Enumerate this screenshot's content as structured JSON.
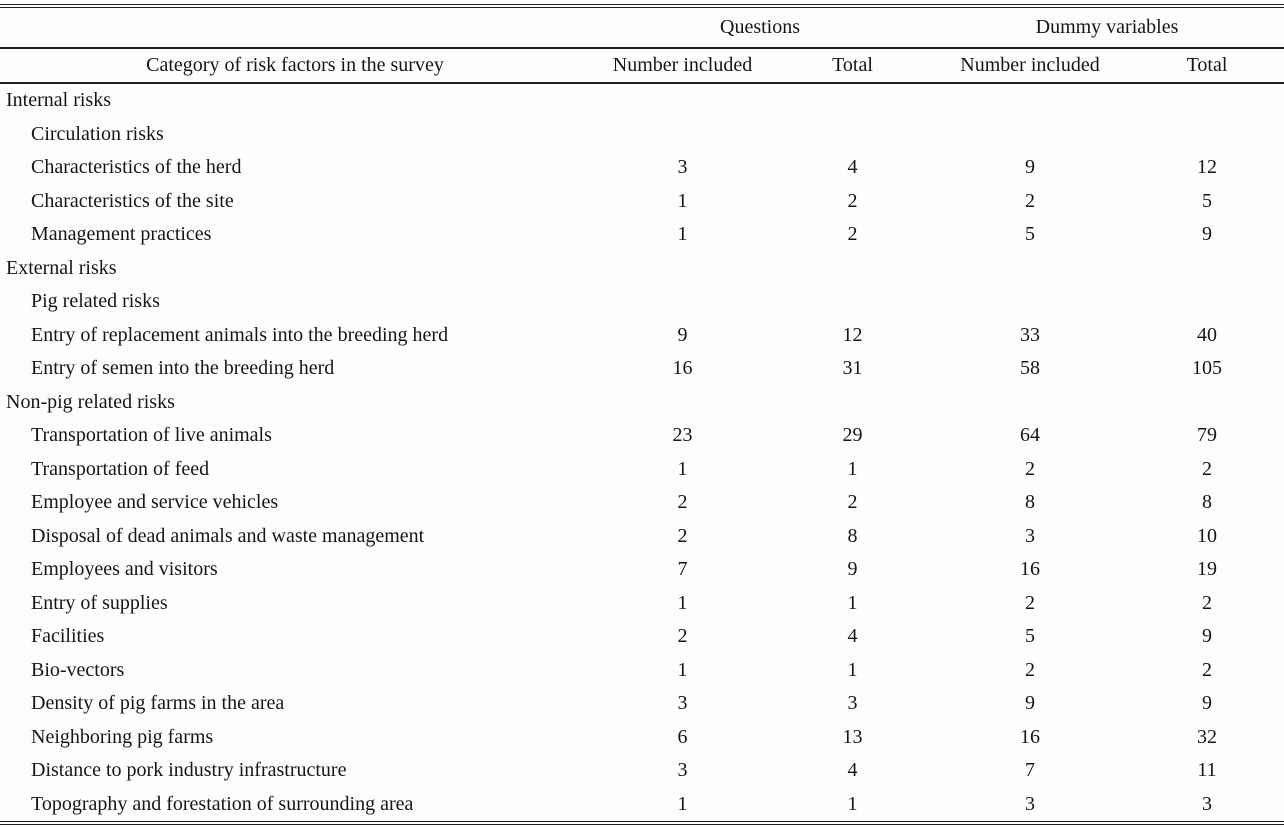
{
  "table": {
    "category_header": "Category of risk factors in the survey",
    "column_groups": [
      {
        "label": "Questions"
      },
      {
        "label": "Dummy variables"
      }
    ],
    "sub_headers": [
      "Number included",
      "Total",
      "Number included",
      "Total"
    ],
    "rows": [
      {
        "label": "Internal risks",
        "level": 0,
        "values": [
          "",
          "",
          "",
          ""
        ]
      },
      {
        "label": "Circulation risks",
        "level": 1,
        "values": [
          "",
          "",
          "",
          ""
        ]
      },
      {
        "label": "Characteristics of the herd",
        "level": 1,
        "values": [
          "3",
          "4",
          "9",
          "12"
        ]
      },
      {
        "label": "Characteristics of the site",
        "level": 1,
        "values": [
          "1",
          "2",
          "2",
          "5"
        ]
      },
      {
        "label": "Management practices",
        "level": 1,
        "values": [
          "1",
          "2",
          "5",
          "9"
        ]
      },
      {
        "label": "External risks",
        "level": 0,
        "values": [
          "",
          "",
          "",
          ""
        ]
      },
      {
        "label": "Pig related risks",
        "level": 1,
        "values": [
          "",
          "",
          "",
          ""
        ]
      },
      {
        "label": "Entry of replacement animals into the breeding herd",
        "level": 1,
        "values": [
          "9",
          "12",
          "33",
          "40"
        ]
      },
      {
        "label": "Entry of semen into the breeding herd",
        "level": 1,
        "values": [
          "16",
          "31",
          "58",
          "105"
        ]
      },
      {
        "label": "Non-pig related risks",
        "level": 0,
        "values": [
          "",
          "",
          "",
          ""
        ]
      },
      {
        "label": "Transportation of live animals",
        "level": 1,
        "values": [
          "23",
          "29",
          "64",
          "79"
        ]
      },
      {
        "label": "Transportation of feed",
        "level": 1,
        "values": [
          "1",
          "1",
          "2",
          "2"
        ]
      },
      {
        "label": "Employee and service vehicles",
        "level": 1,
        "values": [
          "2",
          "2",
          "8",
          "8"
        ]
      },
      {
        "label": "Disposal of dead animals and waste management",
        "level": 1,
        "values": [
          "2",
          "8",
          "3",
          "10"
        ]
      },
      {
        "label": "Employees and visitors",
        "level": 1,
        "values": [
          "7",
          "9",
          "16",
          "19"
        ]
      },
      {
        "label": "Entry of supplies",
        "level": 1,
        "values": [
          "1",
          "1",
          "2",
          "2"
        ]
      },
      {
        "label": "Facilities",
        "level": 1,
        "values": [
          "2",
          "4",
          "5",
          "9"
        ]
      },
      {
        "label": "Bio-vectors",
        "level": 1,
        "values": [
          "1",
          "1",
          "2",
          "2"
        ]
      },
      {
        "label": "Density of pig farms in the area",
        "level": 1,
        "values": [
          "3",
          "3",
          "9",
          "9"
        ]
      },
      {
        "label": "Neighboring pig farms",
        "level": 1,
        "values": [
          "6",
          "13",
          "16",
          "32"
        ]
      },
      {
        "label": "Distance to pork industry infrastructure",
        "level": 1,
        "values": [
          "3",
          "4",
          "7",
          "11"
        ]
      },
      {
        "label": "Topography and forestation of surrounding area",
        "level": 1,
        "values": [
          "1",
          "1",
          "3",
          "3"
        ]
      }
    ]
  }
}
